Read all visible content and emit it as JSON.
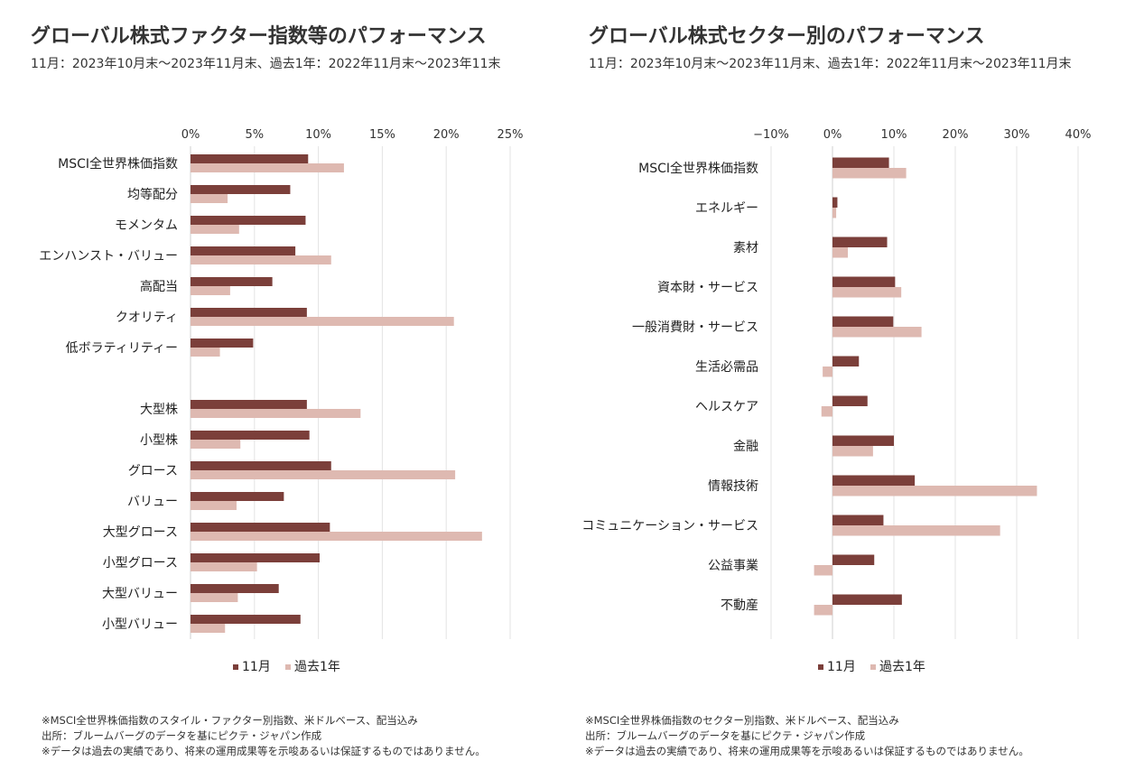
{
  "left": {
    "title": "グローバル株式ファクター指数等のパフォーマンス",
    "subtitle": "11月：2023年10月末～2023年11月末、過去1年：2022年11月末～2023年11末",
    "notes": [
      "※MSCI全世界株価指数のスタイル・ファクター別指数、米ドルベース、配当込み",
      "出所：ブルームバーグのデータを基にピクテ・ジャパン作成",
      "※データは過去の実績であり、将来の運用成果等を示唆あるいは保証するものではありません。"
    ]
  },
  "right": {
    "title": "グローバル株式セクター別のパフォーマンス",
    "subtitle": "11月：2023年10月末～2023年11月末、過去1年：2022年11月末～2023年11月末",
    "notes": [
      "※MSCI全世界株価指数のセクター別指数、米ドルベース、配当込み",
      "出所：ブルームバーグのデータを基にピクテ・ジャパン作成",
      "※データは過去の実績であり、将来の運用成果等を示唆あるいは保証するものではありません。"
    ]
  },
  "colors": {
    "november": "#7b3f3a",
    "past_year": "#deb9b1",
    "grid": "#e3e3e3"
  },
  "chart_data": [
    {
      "type": "bar",
      "orientation": "horizontal",
      "title": "グローバル株式ファクター指数等のパフォーマンス",
      "xlim": [
        0,
        25
      ],
      "ticks": [
        0,
        5,
        10,
        15,
        20,
        25
      ],
      "tick_labels": [
        "0%",
        "5%",
        "10%",
        "15%",
        "20%",
        "25%"
      ],
      "grid": true,
      "legend": "bottom",
      "categories": [
        "MSCI全世界株価指数",
        "均等配分",
        "モメンタム",
        "エンハンスト・バリュー",
        "高配当",
        "クオリティ",
        "低ボラティリティー",
        "",
        "大型株",
        "小型株",
        "グロース",
        "バリュー",
        "大型グロース",
        "小型グロース",
        "大型バリュー",
        "小型バリュー"
      ],
      "series": [
        {
          "name": "11月",
          "values": [
            9.2,
            7.8,
            9.0,
            8.2,
            6.4,
            9.1,
            4.9,
            null,
            9.1,
            9.3,
            11.0,
            7.3,
            10.9,
            10.1,
            6.9,
            8.6
          ]
        },
        {
          "name": "過去1年",
          "values": [
            12.0,
            2.9,
            3.8,
            11.0,
            3.1,
            20.6,
            2.3,
            null,
            13.3,
            3.9,
            20.7,
            3.6,
            22.8,
            5.2,
            3.7,
            2.7
          ]
        }
      ]
    },
    {
      "type": "bar",
      "orientation": "horizontal",
      "title": "グローバル株式セクター別のパフォーマンス",
      "xlim": [
        -10,
        40
      ],
      "ticks": [
        -10,
        0,
        10,
        20,
        30,
        40
      ],
      "tick_labels": [
        "−10%",
        "0%",
        "10%",
        "20%",
        "30%",
        "40%"
      ],
      "grid": true,
      "legend": "bottom",
      "categories": [
        "MSCI全世界株価指数",
        "エネルギー",
        "素材",
        "資本財・サービス",
        "一般消費財・サービス",
        "生活必需品",
        "ヘルスケア",
        "金融",
        "情報技術",
        "コミュニケーション・サービス",
        "公益事業",
        "不動産"
      ],
      "series": [
        {
          "name": "11月",
          "values": [
            9.2,
            0.8,
            8.9,
            10.2,
            9.9,
            4.3,
            5.7,
            10.0,
            13.4,
            8.3,
            6.8,
            11.3
          ]
        },
        {
          "name": "過去1年",
          "values": [
            12.0,
            0.6,
            2.5,
            11.2,
            14.5,
            -1.6,
            -1.8,
            6.6,
            33.3,
            27.3,
            -3.0,
            -3.0
          ]
        }
      ]
    }
  ]
}
